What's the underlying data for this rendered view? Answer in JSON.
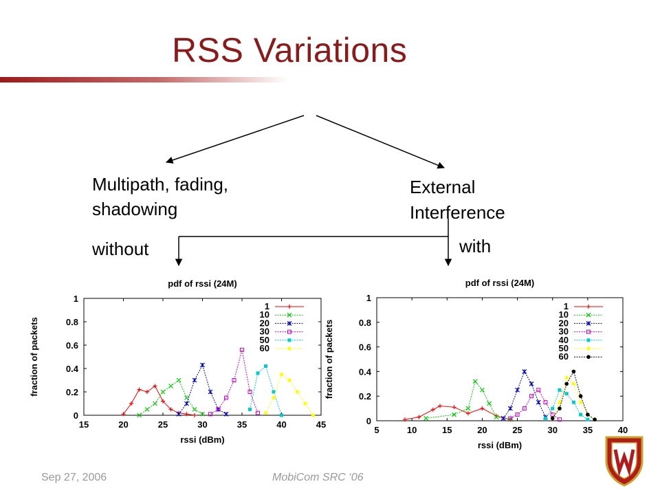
{
  "slide": {
    "title": "RSS Variations",
    "left_heading_line1": "Multipath, fading,",
    "left_heading_line2": "shadowing",
    "right_heading_line1": "External",
    "right_heading_line2": "Interference",
    "left_sub": "without",
    "right_sub": "with",
    "footer_date": "Sep 27, 2006",
    "footer_event": "MobiCom SRC ‘06",
    "accent_color": "#8b1a1a"
  },
  "chart_data": [
    {
      "type": "line",
      "title": "pdf of rssi (24M)",
      "xlabel": "rssi (dBm)",
      "ylabel": "fraction of packets",
      "xlim": [
        15,
        45
      ],
      "ylim": [
        0,
        1
      ],
      "xticks": [
        15,
        20,
        25,
        30,
        35,
        40,
        45
      ],
      "yticks": [
        0,
        0.2,
        0.4,
        0.6,
        0.8,
        1
      ],
      "ytick_labels": [
        "0",
        "0.2",
        "0.4",
        "0.6",
        "0.8",
        "1"
      ],
      "legend_position": "top-right",
      "series": [
        {
          "name": "1",
          "color": "#ff0000",
          "x": [
            20,
            21,
            22,
            23,
            24,
            25,
            26,
            27,
            28,
            29
          ],
          "y": [
            0.01,
            0.1,
            0.22,
            0.2,
            0.25,
            0.12,
            0.05,
            0.02,
            0.01,
            0.0
          ]
        },
        {
          "name": "10",
          "color": "#00cc00",
          "x": [
            22,
            23,
            24,
            25,
            26,
            27,
            28,
            29,
            30
          ],
          "y": [
            0.0,
            0.05,
            0.1,
            0.2,
            0.25,
            0.3,
            0.15,
            0.05,
            0.01
          ]
        },
        {
          "name": "20",
          "color": "#0000cc",
          "x": [
            27,
            28,
            29,
            30,
            31,
            32,
            33
          ],
          "y": [
            0.01,
            0.1,
            0.3,
            0.43,
            0.2,
            0.05,
            0.01
          ]
        },
        {
          "name": "30",
          "color": "#cc00cc",
          "x": [
            31,
            32,
            33,
            34,
            35,
            36,
            37
          ],
          "y": [
            0.01,
            0.05,
            0.15,
            0.3,
            0.56,
            0.2,
            0.02
          ]
        },
        {
          "name": "50",
          "color": "#00cccc",
          "x": [
            36,
            37,
            38,
            39,
            40
          ],
          "y": [
            0.05,
            0.36,
            0.42,
            0.2,
            0.0
          ]
        },
        {
          "name": "60",
          "color": "#ffff00",
          "x": [
            38,
            39,
            40,
            41,
            42,
            43,
            44
          ],
          "y": [
            0.02,
            0.15,
            0.35,
            0.3,
            0.2,
            0.1,
            0.0
          ]
        }
      ]
    },
    {
      "type": "line",
      "title": "pdf of rssi (24M)",
      "xlabel": "rssi (dBm)",
      "ylabel": "fraction of packets",
      "xlim": [
        5,
        40
      ],
      "ylim": [
        0,
        1
      ],
      "xticks": [
        5,
        10,
        15,
        20,
        25,
        30,
        35,
        40
      ],
      "yticks": [
        0,
        0.2,
        0.4,
        0.6,
        0.8,
        1
      ],
      "ytick_labels": [
        "0",
        "0.2",
        "0.4",
        "0.6",
        "0.8",
        "1"
      ],
      "legend_position": "top-right",
      "series": [
        {
          "name": "1",
          "color": "#ff0000",
          "x": [
            9,
            11,
            13,
            14,
            16,
            18,
            20,
            22,
            24
          ],
          "y": [
            0.01,
            0.03,
            0.09,
            0.12,
            0.11,
            0.06,
            0.1,
            0.04,
            0.01
          ]
        },
        {
          "name": "10",
          "color": "#00cc00",
          "x": [
            12,
            16,
            18,
            19,
            20,
            21,
            22,
            24
          ],
          "y": [
            0.02,
            0.05,
            0.1,
            0.32,
            0.25,
            0.14,
            0.03,
            0.01
          ]
        },
        {
          "name": "20",
          "color": "#0000cc",
          "x": [
            23,
            24,
            25,
            26,
            27,
            28,
            29
          ],
          "y": [
            0.02,
            0.1,
            0.25,
            0.4,
            0.3,
            0.15,
            0.03
          ]
        },
        {
          "name": "30",
          "color": "#cc00cc",
          "x": [
            24,
            25,
            26,
            27,
            28,
            29,
            30,
            31
          ],
          "y": [
            0.02,
            0.05,
            0.1,
            0.2,
            0.25,
            0.15,
            0.05,
            0.01
          ]
        },
        {
          "name": "40",
          "color": "#00cccc",
          "x": [
            29,
            30,
            31,
            32,
            33,
            34,
            35
          ],
          "y": [
            0.02,
            0.1,
            0.25,
            0.22,
            0.15,
            0.05,
            0.01
          ]
        },
        {
          "name": "50",
          "color": "#ffff00",
          "x": [
            30,
            31,
            32,
            33,
            34,
            35,
            36
          ],
          "y": [
            0.02,
            0.15,
            0.35,
            0.3,
            0.15,
            0.05,
            0.01
          ]
        },
        {
          "name": "60",
          "color": "#000000",
          "x": [
            30,
            31,
            32,
            33,
            34,
            35,
            36
          ],
          "y": [
            0.02,
            0.1,
            0.3,
            0.4,
            0.2,
            0.05,
            0.01
          ]
        }
      ]
    }
  ]
}
